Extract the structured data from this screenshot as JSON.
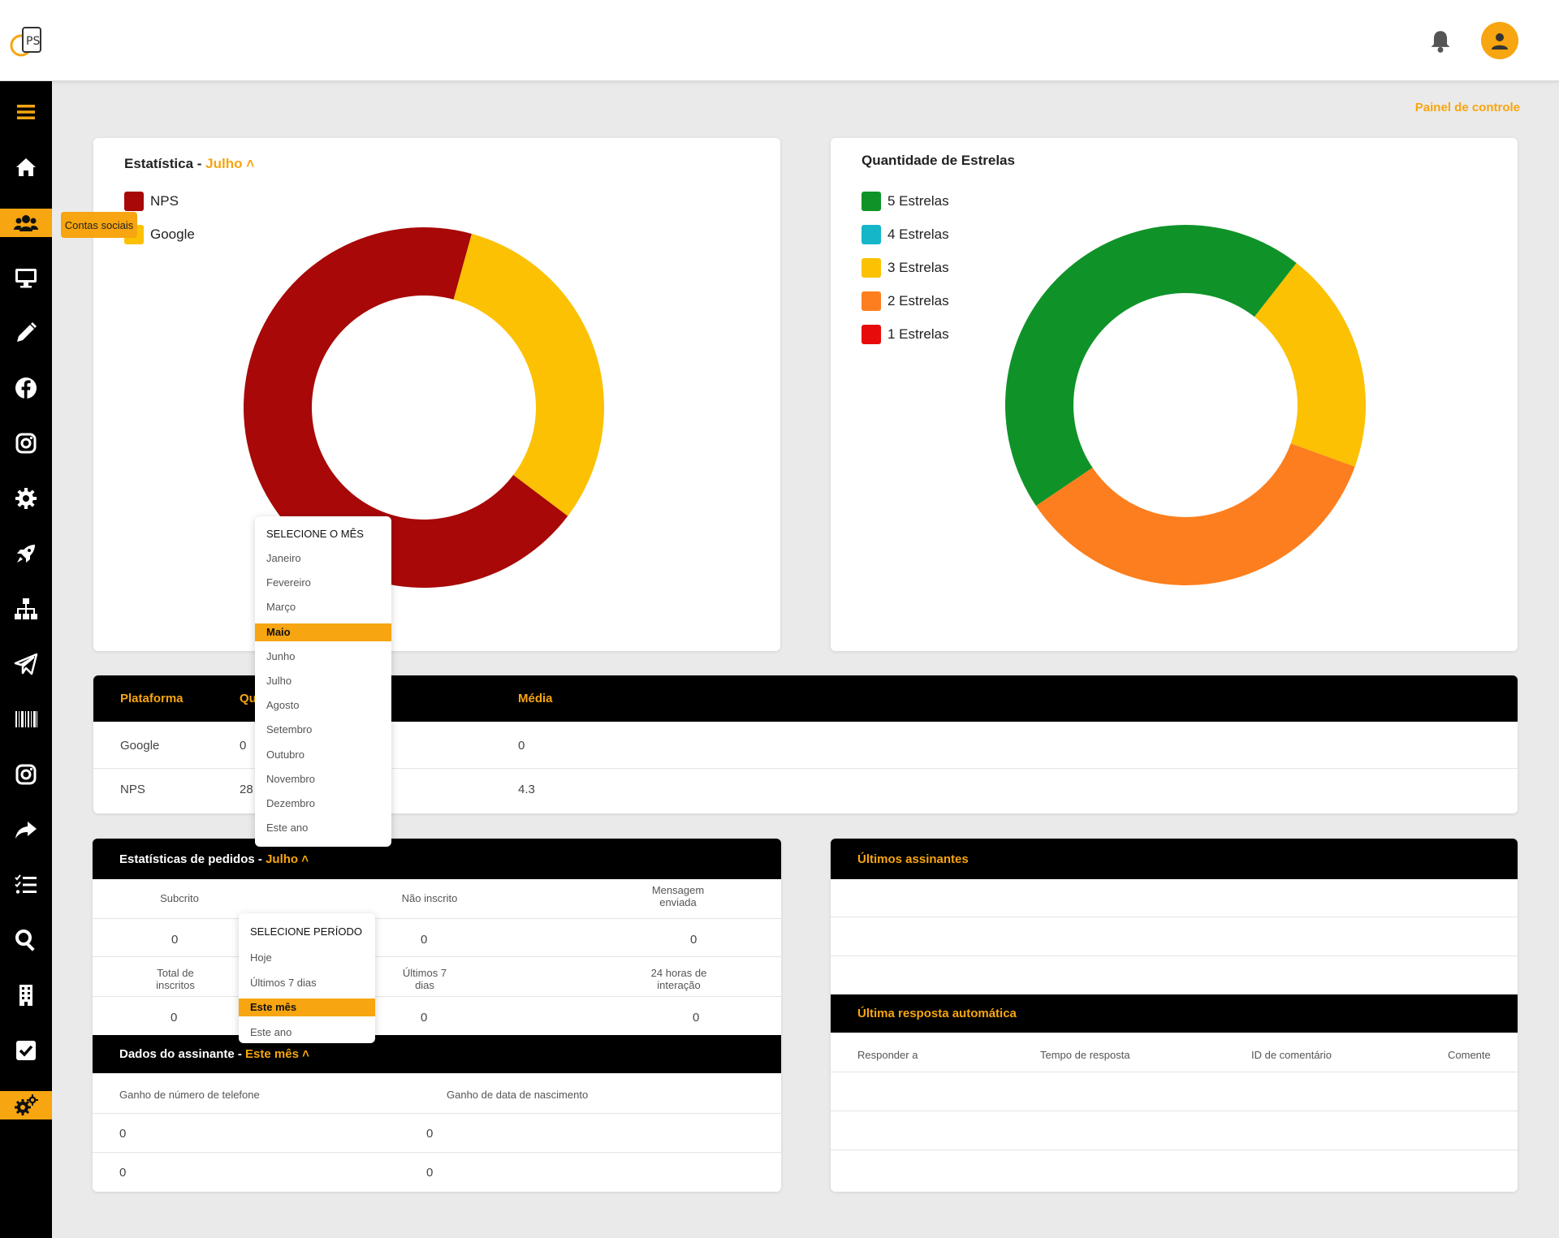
{
  "header": {
    "logo_text": "PS"
  },
  "sidebar": {
    "tooltip": "Contas sociais",
    "items": [
      "menu",
      "home",
      "users",
      "monitor",
      "pencil",
      "facebook",
      "instagram",
      "gear",
      "rocket",
      "sitemap",
      "paper-plane",
      "barcode",
      "instagram",
      "share",
      "tasks",
      "search",
      "building",
      "check-square",
      "cogs"
    ]
  },
  "breadcrumb": "Painel de controle",
  "stats_card": {
    "title": "Estatística - ",
    "month": "Julho",
    "legend": [
      "NPS",
      "Google"
    ]
  },
  "stars_card": {
    "title": "Quantidade de Estrelas",
    "legend": [
      "5 Estrelas",
      "4 Estrelas",
      "3 Estrelas",
      "2 Estrelas",
      "1 Estrelas"
    ]
  },
  "chart_data": [
    {
      "type": "pie",
      "title": "",
      "categories": [
        "NPS",
        "Google"
      ],
      "values": [
        69,
        31
      ],
      "colors": [
        "#a80808",
        "#fcc102"
      ]
    },
    {
      "type": "pie",
      "title": "",
      "categories": [
        "5 Estrelas",
        "4 Estrelas",
        "3 Estrelas",
        "2 Estrelas",
        "1 Estrelas"
      ],
      "values": [
        45,
        0,
        20,
        35,
        0
      ],
      "colors": [
        "#0f9328",
        "#14b6c8",
        "#fcc102",
        "#fd7e1e",
        "#e80b0b"
      ]
    }
  ],
  "platform_table": {
    "headers": [
      "Plataforma",
      "Qu",
      "Média"
    ],
    "rows": [
      [
        "Google",
        "0",
        "0"
      ],
      [
        "NPS",
        "28",
        "4.3"
      ]
    ]
  },
  "month_dropdown": {
    "header": "SELECIONE O MÊS",
    "options": [
      "Janeiro",
      "Fevereiro",
      "Março",
      "Maio",
      "Junho",
      "Julho",
      "Agosto",
      "Setembro",
      "Outubro",
      "Novembro",
      "Dezembro",
      "Este ano"
    ],
    "selected": "Maio"
  },
  "orders": {
    "title": "Estatísticas de pedidos - ",
    "month": "Julho",
    "row1_labels": [
      "Subcrito",
      "Não inscrito",
      "Mensagem enviada"
    ],
    "row1_values": [
      "0",
      "0",
      "0"
    ],
    "row2_labels": [
      "Total de inscritos",
      "Últimos 7 dias",
      "24 horas de interação"
    ],
    "row2_values": [
      "0",
      "0",
      "0"
    ]
  },
  "period_dropdown": {
    "header": "SELECIONE PERÍODO",
    "options": [
      "Hoje",
      "Últimos 7 dias",
      "Este mês",
      "Este ano"
    ],
    "selected": "Este mês"
  },
  "subscriber": {
    "title": "Dados do assinante - ",
    "period": "Este mês",
    "headers": [
      "Ganho de número de telefone",
      "Ganho de data de nascimento"
    ],
    "rows": [
      [
        "0",
        "0"
      ],
      [
        "0",
        "0"
      ]
    ]
  },
  "latest": {
    "title": "Últimos assinantes"
  },
  "autoresponse": {
    "title": "Última resposta automática",
    "headers": [
      "Responder a",
      "Tempo de resposta",
      "ID de comentário",
      "Comente"
    ]
  }
}
